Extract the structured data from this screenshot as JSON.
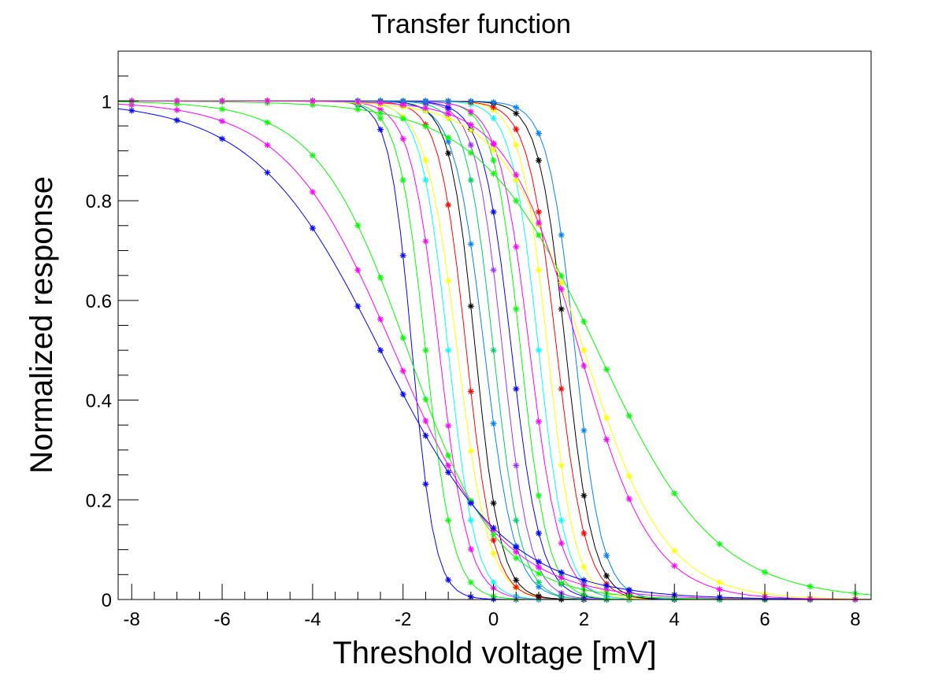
{
  "chart_data": {
    "type": "line",
    "title": "Transfer function",
    "xlabel": "Threshold voltage [mV]",
    "ylabel": "Normalized response",
    "xlim": [
      -8.3,
      8.35
    ],
    "ylim": [
      0,
      1.1
    ],
    "grid": false,
    "legend": "none",
    "x_ticks": [
      -8,
      -6,
      -4,
      -2,
      0,
      2,
      4,
      6,
      8
    ],
    "x_tick_labels": [
      "-8",
      "-6",
      "-4",
      "-2",
      "0",
      "2",
      "4",
      "6",
      "8"
    ],
    "y_ticks": [
      0,
      0.2,
      0.4,
      0.6,
      0.8,
      1
    ],
    "y_tick_labels": [
      "0",
      "0.2",
      "0.4",
      "0.6",
      "0.8",
      "1"
    ],
    "marker": "asterisk",
    "palette": [
      "#0000ff",
      "#00ff00",
      "#ff00ff",
      "#00ffff",
      "#ffff00",
      "#ff0000",
      "#000000",
      "#0080ff",
      "#00cc66",
      "#9933ff"
    ],
    "sampled_x": [
      -8,
      -7,
      -6,
      -5,
      -4,
      -3,
      -2.5,
      -2,
      -1.5,
      -1,
      -0.5,
      0,
      0.5,
      1,
      1.5,
      2,
      2.5,
      3,
      4,
      5,
      6,
      7,
      8
    ],
    "series": [
      {
        "color": "#0000ff",
        "x0": -1.8,
        "w": 0.25
      },
      {
        "color": "#00ff00",
        "x0": -1.5,
        "w": 0.3
      },
      {
        "color": "#ff00ff",
        "x0": -1.2,
        "w": 0.32
      },
      {
        "color": "#00ffff",
        "x0": -1.0,
        "w": 0.3
      },
      {
        "color": "#ffff00",
        "x0": -0.8,
        "w": 0.35
      },
      {
        "color": "#ff0000",
        "x0": -0.6,
        "w": 0.3
      },
      {
        "color": "#000000",
        "x0": -0.4,
        "w": 0.28
      },
      {
        "color": "#0080ff",
        "x0": -0.2,
        "w": 0.33
      },
      {
        "color": "#00cc66",
        "x0": 0.0,
        "w": 0.3
      },
      {
        "color": "#9933ff",
        "x0": 0.2,
        "w": 0.3
      },
      {
        "color": "#0000ff",
        "x0": 0.4,
        "w": 0.32
      },
      {
        "color": "#00ff00",
        "x0": 0.6,
        "w": 0.3
      },
      {
        "color": "#ff00ff",
        "x0": 0.8,
        "w": 0.34
      },
      {
        "color": "#00ffff",
        "x0": 1.0,
        "w": 0.3
      },
      {
        "color": "#ffff00",
        "x0": 1.2,
        "w": 0.3
      },
      {
        "color": "#ff0000",
        "x0": 1.4,
        "w": 0.32
      },
      {
        "color": "#000000",
        "x0": 1.6,
        "w": 0.3
      },
      {
        "color": "#0080ff",
        "x0": 1.8,
        "w": 0.3
      },
      {
        "color": "#ff00ff",
        "x0": -2.2,
        "w": 1.2
      },
      {
        "color": "#00ff00",
        "x0": -1.9,
        "w": 1.0
      },
      {
        "color": "#0000ff",
        "x0": -2.5,
        "w": 1.4
      },
      {
        "color": "#00ff00",
        "x0": 2.3,
        "w": 1.3
      },
      {
        "color": "#ffff00",
        "x0": 2.0,
        "w": 0.9
      },
      {
        "color": "#ff00ff",
        "x0": 1.9,
        "w": 0.8
      }
    ]
  }
}
